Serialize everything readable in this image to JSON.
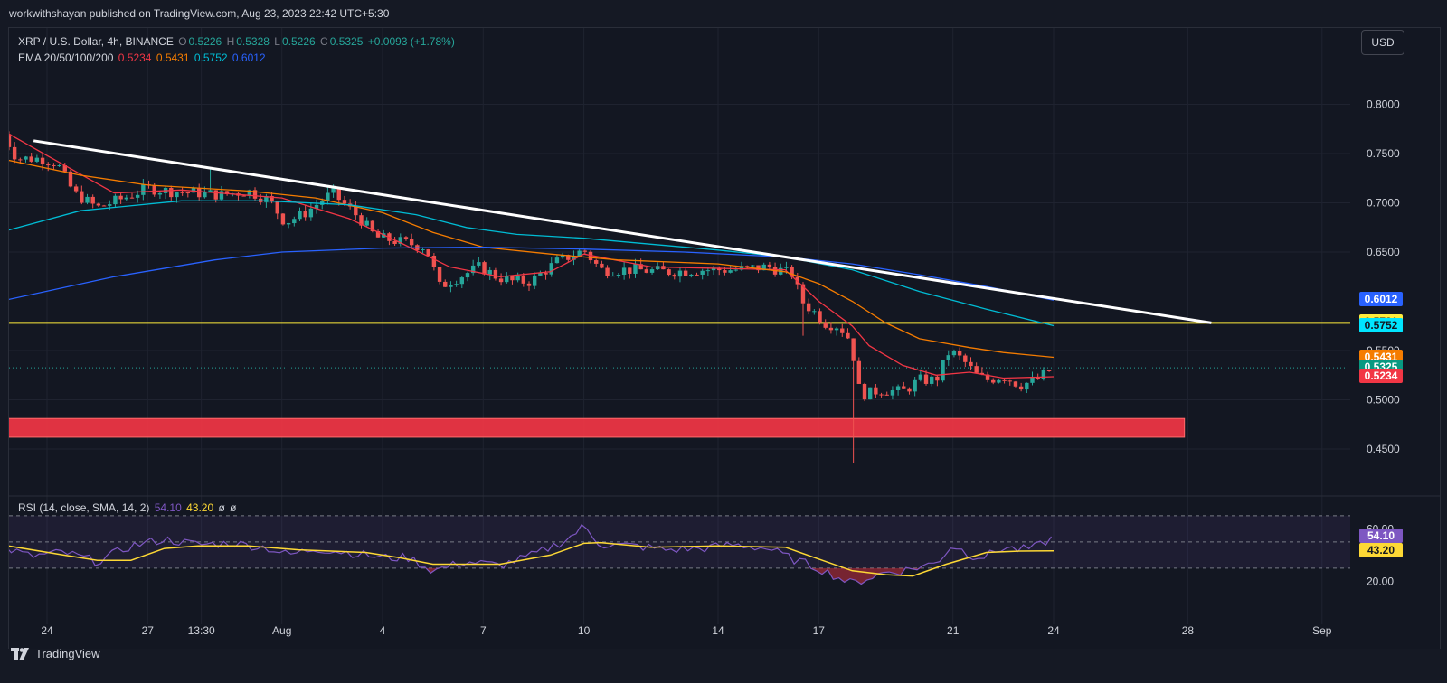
{
  "publisher": "workwithshayan published on TradingView.com, Aug 23, 2023 22:42 UTC+5:30",
  "header": {
    "symbol": "XRP / U.S. Dollar, 4h, BINANCE",
    "o_label": "O",
    "o_value": "0.5226",
    "h_label": "H",
    "h_value": "0.5328",
    "l_label": "L",
    "l_value": "0.5226",
    "c_label": "C",
    "c_value": "0.5325",
    "change": "+0.0093 (+1.78%)"
  },
  "ema_legend": {
    "label": "EMA 20/50/100/200",
    "v20": "0.5234",
    "v50": "0.5431",
    "v100": "0.5752",
    "v200": "0.6012"
  },
  "rsi_legend": {
    "label": "RSI (14, close, SMA, 14, 2)",
    "rsi": "54.10",
    "sma": "43.20",
    "e1": "ø",
    "e2": "ø"
  },
  "currency_button": "USD",
  "brand": "TradingView",
  "colors": {
    "up": "#26a69a",
    "down": "#ef5350",
    "ema20": "#f23645",
    "ema50": "#f57c00",
    "ema100": "#00bcd4",
    "ema200": "#2962ff",
    "rsi": "#7e57c2",
    "rsi_sma": "#fdd835",
    "trendline": "#ffffff",
    "support": "#ffeb3b",
    "zone": "#f23645"
  },
  "price_tags": [
    {
      "text": "0.6012",
      "price": 0.6012,
      "bg": "#2962ff",
      "fg": "#ffffff"
    },
    {
      "text": "0.5781",
      "price": 0.5781,
      "bg": "#ffeb3b",
      "fg": "#131722"
    },
    {
      "text": "0.5752",
      "price": 0.5752,
      "bg": "#00e5ff",
      "fg": "#131722"
    },
    {
      "text": "0.5431",
      "price": 0.5431,
      "bg": "#f57c00",
      "fg": "#ffffff"
    },
    {
      "text": "0.5325",
      "price": 0.5325,
      "bg": "#089981",
      "fg": "#ffffff"
    },
    {
      "text": "0.5234",
      "price": 0.5234,
      "bg": "#f23645",
      "fg": "#ffffff"
    }
  ],
  "rsi_tags": [
    {
      "text": "54.10",
      "value": 54.1,
      "bg": "#7e57c2",
      "fg": "#ffffff"
    },
    {
      "text": "43.20",
      "value": 43.2,
      "bg": "#fdd835",
      "fg": "#131722"
    }
  ],
  "chart_data": {
    "type": "candlestick",
    "price_axis": {
      "ylim": [
        0.415,
        0.83
      ],
      "ticks": [
        "0.8000",
        "0.7500",
        "0.7000",
        "0.6500",
        "0.5500",
        "0.5000",
        "0.4500"
      ]
    },
    "rsi_axis": {
      "ylim": [
        14,
        70
      ],
      "ticks": [
        "60.00",
        "20.00"
      ],
      "upper_band": 70,
      "lower_band": 30
    },
    "x_axis": {
      "ticks": [
        {
          "label": "24",
          "day": 0
        },
        {
          "label": "27",
          "day": 3
        },
        {
          "label": "13:30",
          "day": 4.6
        },
        {
          "label": "Aug",
          "day": 7
        },
        {
          "label": "4",
          "day": 10
        },
        {
          "label": "7",
          "day": 13
        },
        {
          "label": "10",
          "day": 16
        },
        {
          "label": "14",
          "day": 20
        },
        {
          "label": "17",
          "day": 23
        },
        {
          "label": "21",
          "day": 27
        },
        {
          "label": "24",
          "day": 30
        },
        {
          "label": "28",
          "day": 34
        },
        {
          "label": "Sep",
          "day": 38
        }
      ]
    },
    "price_path": [
      [
        -1.3,
        0.77
      ],
      [
        -0.9,
        0.745
      ],
      [
        -0.2,
        0.745
      ],
      [
        0.3,
        0.74
      ],
      [
        0.8,
        0.71
      ],
      [
        1.5,
        0.695
      ],
      [
        2.3,
        0.705
      ],
      [
        3.0,
        0.715
      ],
      [
        3.6,
        0.712
      ],
      [
        4.5,
        0.71
      ],
      [
        5.2,
        0.708
      ],
      [
        6.0,
        0.712
      ],
      [
        6.6,
        0.703
      ],
      [
        7.1,
        0.68
      ],
      [
        7.7,
        0.69
      ],
      [
        8.5,
        0.71
      ],
      [
        9.3,
        0.685
      ],
      [
        9.8,
        0.665
      ],
      [
        10.6,
        0.66
      ],
      [
        11.3,
        0.655
      ],
      [
        11.7,
        0.615
      ],
      [
        12.3,
        0.625
      ],
      [
        12.9,
        0.635
      ],
      [
        13.4,
        0.625
      ],
      [
        13.9,
        0.62
      ],
      [
        14.4,
        0.62
      ],
      [
        15.2,
        0.64
      ],
      [
        16.0,
        0.652
      ],
      [
        16.5,
        0.632
      ],
      [
        17.5,
        0.632
      ],
      [
        18.5,
        0.63
      ],
      [
        19.5,
        0.632
      ],
      [
        20.5,
        0.632
      ],
      [
        21.5,
        0.635
      ],
      [
        22.2,
        0.628
      ],
      [
        22.5,
        0.6
      ],
      [
        22.9,
        0.588
      ],
      [
        23.2,
        0.578
      ],
      [
        23.6,
        0.575
      ],
      [
        24.0,
        0.558
      ],
      [
        24.1,
        0.515
      ],
      [
        24.4,
        0.505
      ],
      [
        24.8,
        0.51
      ],
      [
        25.5,
        0.508
      ],
      [
        26.0,
        0.52
      ],
      [
        26.5,
        0.52
      ],
      [
        26.9,
        0.55
      ],
      [
        27.3,
        0.54
      ],
      [
        27.7,
        0.525
      ],
      [
        28.0,
        0.52
      ],
      [
        28.5,
        0.524
      ],
      [
        29.0,
        0.515
      ],
      [
        29.5,
        0.52
      ],
      [
        30.0,
        0.5325
      ]
    ],
    "price_wicks": [
      {
        "day": 24.05,
        "low": 0.436
      },
      {
        "day": 22.6,
        "low": 0.565
      },
      {
        "day": 4.9,
        "high": 0.735
      }
    ],
    "ema_series": [
      {
        "name": "EMA 20",
        "values": [
          [
            -1.4,
            0.775
          ],
          [
            0.0,
            0.748
          ],
          [
            2.0,
            0.71
          ],
          [
            4.0,
            0.713
          ],
          [
            7.0,
            0.705
          ],
          [
            9.0,
            0.684
          ],
          [
            10.5,
            0.66
          ],
          [
            12.0,
            0.635
          ],
          [
            13.5,
            0.625
          ],
          [
            15.0,
            0.63
          ],
          [
            16.0,
            0.648
          ],
          [
            18.0,
            0.635
          ],
          [
            22.0,
            0.632
          ],
          [
            23.0,
            0.6
          ],
          [
            24.0,
            0.575
          ],
          [
            24.5,
            0.555
          ],
          [
            25.5,
            0.535
          ],
          [
            26.5,
            0.525
          ],
          [
            27.5,
            0.528
          ],
          [
            28.5,
            0.522
          ],
          [
            30.0,
            0.5234
          ]
        ]
      },
      {
        "name": "EMA 50",
        "values": [
          [
            -1.4,
            0.745
          ],
          [
            1.0,
            0.728
          ],
          [
            3.0,
            0.718
          ],
          [
            6.0,
            0.712
          ],
          [
            8.0,
            0.705
          ],
          [
            10.0,
            0.69
          ],
          [
            11.5,
            0.67
          ],
          [
            13.0,
            0.655
          ],
          [
            15.0,
            0.648
          ],
          [
            17.0,
            0.642
          ],
          [
            20.0,
            0.638
          ],
          [
            22.0,
            0.63
          ],
          [
            23.0,
            0.618
          ],
          [
            24.0,
            0.6
          ],
          [
            25.0,
            0.578
          ],
          [
            26.0,
            0.562
          ],
          [
            27.5,
            0.553
          ],
          [
            28.5,
            0.548
          ],
          [
            30.0,
            0.5431
          ]
        ]
      },
      {
        "name": "EMA 100",
        "values": [
          [
            -1.4,
            0.67
          ],
          [
            1.0,
            0.692
          ],
          [
            4.0,
            0.702
          ],
          [
            6.5,
            0.702
          ],
          [
            9.0,
            0.698
          ],
          [
            11.0,
            0.688
          ],
          [
            12.5,
            0.675
          ],
          [
            14.0,
            0.668
          ],
          [
            16.0,
            0.664
          ],
          [
            18.0,
            0.658
          ],
          [
            20.0,
            0.652
          ],
          [
            22.0,
            0.645
          ],
          [
            24.0,
            0.632
          ],
          [
            26.0,
            0.61
          ],
          [
            28.0,
            0.592
          ],
          [
            30.0,
            0.5752
          ]
        ]
      },
      {
        "name": "EMA 200",
        "values": [
          [
            -1.4,
            0.6
          ],
          [
            2.0,
            0.625
          ],
          [
            5.0,
            0.642
          ],
          [
            7.0,
            0.65
          ],
          [
            10.0,
            0.654
          ],
          [
            13.0,
            0.655
          ],
          [
            16.0,
            0.653
          ],
          [
            19.0,
            0.65
          ],
          [
            22.0,
            0.645
          ],
          [
            24.0,
            0.638
          ],
          [
            26.0,
            0.627
          ],
          [
            28.0,
            0.615
          ],
          [
            30.0,
            0.6012
          ]
        ]
      }
    ],
    "trendline": [
      [
        -0.4,
        0.763
      ],
      [
        34.7,
        0.5781
      ]
    ],
    "support_level": 0.5781,
    "demand_zone": {
      "from_day": -1.4,
      "to_day": 33.9,
      "low": 0.462,
      "high": 0.481
    },
    "rsi_series": {
      "name": "RSI",
      "values": [
        [
          -1.4,
          47
        ],
        [
          -0.5,
          39
        ],
        [
          0.5,
          42
        ],
        [
          1.5,
          35
        ],
        [
          2.5,
          47
        ],
        [
          3.5,
          52
        ],
        [
          4.5,
          48
        ],
        [
          5.5,
          49
        ],
        [
          6.5,
          46
        ],
        [
          7.2,
          40
        ],
        [
          8.0,
          45
        ],
        [
          9.0,
          42
        ],
        [
          10.0,
          38
        ],
        [
          10.8,
          38
        ],
        [
          11.5,
          28
        ],
        [
          12.5,
          35
        ],
        [
          13.5,
          32
        ],
        [
          14.5,
          40
        ],
        [
          15.5,
          52
        ],
        [
          16.0,
          62
        ],
        [
          16.5,
          48
        ],
        [
          17.5,
          47
        ],
        [
          18.5,
          44
        ],
        [
          19.5,
          45
        ],
        [
          20.5,
          48
        ],
        [
          21.5,
          45
        ],
        [
          22.2,
          37
        ],
        [
          23.0,
          30
        ],
        [
          23.5,
          24
        ],
        [
          24.0,
          18
        ],
        [
          24.3,
          21
        ],
        [
          25.0,
          27
        ],
        [
          25.5,
          28
        ],
        [
          26.5,
          34
        ],
        [
          27.0,
          48
        ],
        [
          27.5,
          40
        ],
        [
          28.0,
          39
        ],
        [
          28.5,
          46
        ],
        [
          29.0,
          44
        ],
        [
          29.5,
          46
        ],
        [
          30.0,
          54.1
        ]
      ]
    },
    "rsi_sma_series": {
      "name": "SMA",
      "values": [
        [
          -1.4,
          48
        ],
        [
          0.5,
          40
        ],
        [
          1.5,
          36
        ],
        [
          2.5,
          36
        ],
        [
          3.5,
          45
        ],
        [
          4.5,
          47
        ],
        [
          6.0,
          47
        ],
        [
          7.5,
          44
        ],
        [
          9.5,
          42
        ],
        [
          10.5,
          38
        ],
        [
          11.5,
          33
        ],
        [
          12.5,
          33
        ],
        [
          13.5,
          33
        ],
        [
          15.0,
          40
        ],
        [
          16.0,
          49
        ],
        [
          16.5,
          49.5
        ],
        [
          18.0,
          46
        ],
        [
          20.0,
          47
        ],
        [
          22.0,
          46
        ],
        [
          23.0,
          37
        ],
        [
          24.0,
          28
        ],
        [
          25.0,
          25
        ],
        [
          25.8,
          24
        ],
        [
          26.8,
          33
        ],
        [
          28.0,
          42
        ],
        [
          29.0,
          43
        ],
        [
          30.0,
          43.2
        ]
      ]
    }
  }
}
